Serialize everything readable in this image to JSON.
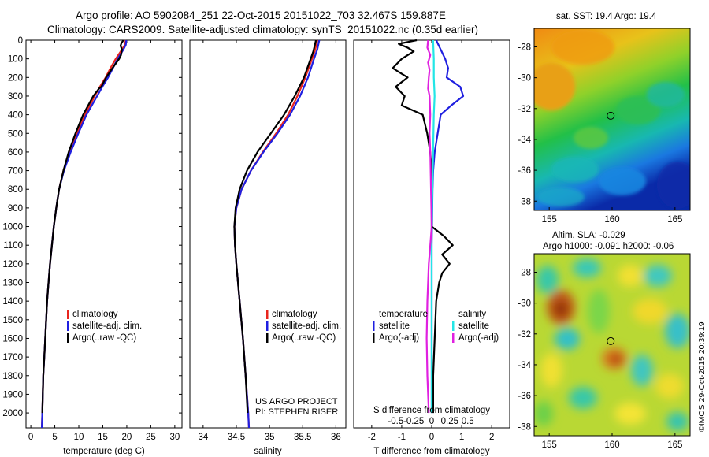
{
  "header": {
    "title_line1": "Argo profile: AO 5902084_251 22-Oct-2015 20151022_703 32.467S 159.887E",
    "title_line2": "Climatology: CARS2009. Satellite-adjusted climatology: synTS_20151022.nc (0.35d earlier)"
  },
  "colors": {
    "climatology": "#e8251e",
    "satellite": "#1f1fe0",
    "argo": "#000000",
    "sat_salinity": "#22e6e6",
    "argo_salinity": "#e020e0"
  },
  "depth_axis": {
    "ticks": [
      0,
      100,
      200,
      300,
      400,
      500,
      600,
      700,
      800,
      900,
      1000,
      1100,
      1200,
      1300,
      1400,
      1500,
      1600,
      1700,
      1800,
      1900,
      2000
    ],
    "range": [
      0,
      2080
    ]
  },
  "chart_data": [
    {
      "type": "line",
      "name": "temperature",
      "xlabel": "temperature (deg C)",
      "xlim": [
        -1,
        31.5
      ],
      "xticks": [
        0,
        5,
        10,
        15,
        20,
        25,
        30
      ],
      "legend": [
        "climatology",
        "satellite-adj. clim.",
        "Argo(..raw -QC)"
      ],
      "series": [
        {
          "name": "climatology",
          "color": "#e8251e",
          "depth": [
            0,
            25,
            50,
            100,
            150,
            200,
            250,
            300,
            400,
            500,
            600,
            700,
            800,
            900,
            1000,
            1100,
            1200,
            1300,
            1400,
            1500,
            1600,
            1700,
            1800,
            1900,
            2000,
            2080
          ],
          "values": [
            19.8,
            19.6,
            19.0,
            17.7,
            16.6,
            15.6,
            14.4,
            13.3,
            11.3,
            9.6,
            8.1,
            6.8,
            5.9,
            5.3,
            4.8,
            4.4,
            4.0,
            3.7,
            3.4,
            3.2,
            3.0,
            2.8,
            2.6,
            2.5,
            2.4,
            2.3
          ]
        },
        {
          "name": "satellite-adj. clim.",
          "color": "#1f1fe0",
          "depth": [
            0,
            25,
            50,
            100,
            150,
            200,
            250,
            300,
            400,
            500,
            600,
            700,
            800,
            900,
            1000,
            1100,
            1200,
            1300,
            1400,
            1500,
            1600,
            1700,
            1800,
            1900,
            2000,
            2080
          ],
          "values": [
            19.9,
            19.8,
            19.3,
            18.1,
            17.1,
            16.1,
            14.9,
            13.8,
            11.6,
            9.9,
            8.3,
            6.9,
            5.9,
            5.3,
            4.8,
            4.4,
            4.0,
            3.7,
            3.4,
            3.2,
            3.0,
            2.8,
            2.6,
            2.5,
            2.4,
            2.3
          ]
        },
        {
          "name": "Argo(..raw -QC)",
          "color": "#000000",
          "depth": [
            0,
            15,
            30,
            50,
            80,
            100,
            150,
            200,
            250,
            260,
            300,
            400,
            500,
            600,
            700,
            800,
            900,
            1000,
            1100,
            1200,
            1300,
            1400,
            1500,
            1600,
            1700,
            1800,
            1900,
            2000
          ],
          "values": [
            19.3,
            18.9,
            18.7,
            19.0,
            18.8,
            18.4,
            17.0,
            15.7,
            14.7,
            14.2,
            13.0,
            10.9,
            9.3,
            7.9,
            6.8,
            5.9,
            5.3,
            4.8,
            4.4,
            4.0,
            3.7,
            3.4,
            3.2,
            3.0,
            2.8,
            2.6,
            2.5,
            2.4
          ]
        }
      ]
    },
    {
      "type": "line",
      "name": "salinity",
      "xlabel": "salinity",
      "xlim": [
        33.8,
        36.15
      ],
      "xticks": [
        34,
        34.5,
        35,
        35.5,
        36
      ],
      "xtick_labels": [
        "34",
        "34.5",
        "35",
        "35.5",
        "36"
      ],
      "legend": [
        "climatology",
        "satellite-adj. clim.",
        "Argo(..raw -QC)"
      ],
      "annotation": [
        "US ARGO PROJECT",
        "PI: STEPHEN RISER"
      ],
      "series": [
        {
          "name": "climatology",
          "color": "#e8251e",
          "depth": [
            0,
            50,
            100,
            200,
            300,
            400,
            500,
            600,
            700,
            800,
            900,
            1000,
            1100,
            1200,
            1400,
            1600,
            1800,
            2000,
            2080
          ],
          "values": [
            35.72,
            35.69,
            35.64,
            35.54,
            35.42,
            35.28,
            35.1,
            34.9,
            34.72,
            34.58,
            34.5,
            34.47,
            34.48,
            34.5,
            34.55,
            34.6,
            34.64,
            34.68,
            34.69
          ]
        },
        {
          "name": "satellite-adj. clim.",
          "color": "#1f1fe0",
          "depth": [
            0,
            50,
            100,
            200,
            300,
            400,
            500,
            600,
            700,
            800,
            900,
            1000,
            1100,
            1200,
            1400,
            1600,
            1800,
            2000,
            2080
          ],
          "values": [
            35.75,
            35.72,
            35.67,
            35.58,
            35.46,
            35.31,
            35.12,
            34.91,
            34.72,
            34.58,
            34.5,
            34.47,
            34.48,
            34.5,
            34.55,
            34.6,
            34.64,
            34.68,
            34.69
          ]
        },
        {
          "name": "Argo(..raw -QC)",
          "color": "#000000",
          "depth": [
            0,
            30,
            60,
            100,
            200,
            300,
            400,
            500,
            600,
            700,
            800,
            900,
            1000,
            1100,
            1200,
            1400,
            1600,
            1800,
            2000
          ],
          "values": [
            35.7,
            35.68,
            35.66,
            35.62,
            35.52,
            35.38,
            35.22,
            35.02,
            34.82,
            34.66,
            34.55,
            34.49,
            34.47,
            34.48,
            34.5,
            34.55,
            34.6,
            34.64,
            34.67
          ]
        }
      ]
    },
    {
      "type": "line",
      "name": "differences",
      "xlabel": "T difference from climatology",
      "xlim": [
        -2.6,
        2.6
      ],
      "xticks": [
        -2,
        -1,
        0,
        1,
        2
      ],
      "top_xlabel": "S difference from climatology",
      "top_xticks": [
        -0.5,
        -0.25,
        0,
        0.25,
        0.5
      ],
      "top_xtick_labels": [
        "-0.5",
        "-0.25",
        "0",
        "0.25",
        "0.5"
      ],
      "legend_title_left": "temperature",
      "legend_title_right": "salinity",
      "legend_left": [
        "satellite",
        "Argo(-adj)"
      ],
      "legend_right": [
        "satellite",
        "Argo(-adj)"
      ],
      "series": [
        {
          "name": "T satellite",
          "color": "#1f1fe0",
          "depth": [
            0,
            50,
            100,
            150,
            200,
            250,
            300,
            350,
            400,
            500,
            600,
            700,
            800,
            900,
            1000,
            1100,
            1200,
            1400,
            1600,
            1800,
            2000
          ],
          "values": [
            0.15,
            0.3,
            0.45,
            0.55,
            0.5,
            0.95,
            1.05,
            0.65,
            0.3,
            0.2,
            0.1,
            0.05,
            0.03,
            0.02,
            0.01,
            0.0,
            0.0,
            0.0,
            0.0,
            0.0,
            0.0
          ]
        },
        {
          "name": "T Argo(-adj)",
          "color": "#000000",
          "depth": [
            0,
            20,
            40,
            60,
            100,
            150,
            200,
            250,
            300,
            350,
            400,
            500,
            600,
            700,
            800,
            900,
            1000,
            1050,
            1100,
            1150,
            1200,
            1250,
            1300,
            1400,
            1600,
            1800,
            2000
          ],
          "values": [
            -0.5,
            -1.1,
            -0.8,
            -0.6,
            -1.0,
            -1.3,
            -0.8,
            -1.2,
            -0.9,
            -1.0,
            -0.3,
            -0.15,
            -0.05,
            0.0,
            0.0,
            0.0,
            0.0,
            0.4,
            0.7,
            0.35,
            0.6,
            0.35,
            0.25,
            0.15,
            0.1,
            0.05,
            0.05
          ]
        },
        {
          "name": "S satellite",
          "color": "#22e6e6",
          "depth": [
            0,
            100,
            200,
            300,
            400,
            600,
            800,
            1000,
            1200,
            1600,
            2000
          ],
          "values": [
            0.02,
            0.03,
            0.03,
            0.04,
            0.03,
            0.02,
            0.01,
            0.0,
            0.0,
            0.0,
            0.0
          ]
        },
        {
          "name": "S Argo(-adj)",
          "color": "#e020e0",
          "depth": [
            0,
            40,
            80,
            120,
            160,
            200,
            260,
            300,
            400,
            500,
            600,
            800,
            1000,
            1100,
            1200,
            1300,
            1400,
            1600,
            1800,
            1900,
            2000
          ],
          "values": [
            -0.05,
            -0.06,
            -0.02,
            -0.05,
            -0.03,
            -0.04,
            -0.05,
            -0.03,
            -0.02,
            -0.03,
            -0.02,
            -0.01,
            0.0,
            -0.02,
            -0.04,
            -0.05,
            -0.06,
            -0.07,
            -0.06,
            -0.05,
            -0.04
          ]
        }
      ]
    },
    {
      "type": "heatmap",
      "name": "sst_map",
      "title": "sat. SST: 19.4  Argo: 19.4",
      "xlim": [
        153.8,
        166.2
      ],
      "ylim": [
        -38.6,
        -26.8
      ],
      "xticks": [
        155,
        160,
        165
      ],
      "yticks": [
        -28,
        -30,
        -32,
        -34,
        -36,
        -38
      ],
      "marker": {
        "lon": 159.887,
        "lat": -32.467
      }
    },
    {
      "type": "heatmap",
      "name": "sla_map",
      "title_line1": "Altim. SLA: -0.029",
      "title_line2": "Argo h1000: -0.091 h2000: -0.06",
      "xlim": [
        153.8,
        166.2
      ],
      "ylim": [
        -38.6,
        -26.8
      ],
      "xticks": [
        155,
        160,
        165
      ],
      "yticks": [
        -28,
        -30,
        -32,
        -34,
        -36,
        -38
      ],
      "marker": {
        "lon": 159.887,
        "lat": -32.467
      }
    }
  ],
  "footer": {
    "watermark": "©IMOS 29-Oct-2015 20:39:19"
  }
}
